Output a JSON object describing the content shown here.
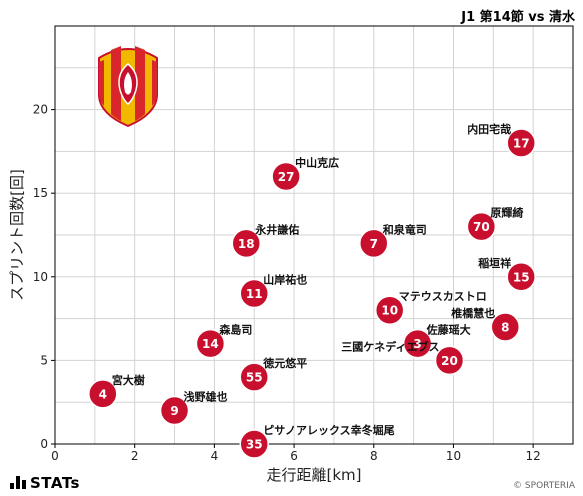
{
  "header": {
    "match_title": "J1 第14節 vs 清水"
  },
  "footer": {
    "brand": "STATs",
    "credit": "© SPORTERIA"
  },
  "colors": {
    "marker": "#c8102e",
    "marker_edge": "#ffffff",
    "grid": "#d3d3d3",
    "crest_red": "#d8262a",
    "crest_yellow": "#f2b800"
  },
  "icons": {
    "crest": "team-crest-icon",
    "stats": "stats-logo-icon"
  },
  "chart_data": {
    "type": "scatter",
    "title": "",
    "xlabel": "走行距離[km]",
    "ylabel": "スプリント回数[回]",
    "xlim": [
      0,
      13
    ],
    "ylim": [
      0,
      25
    ],
    "xticks": [
      0,
      2,
      4,
      6,
      8,
      10,
      12
    ],
    "yticks": [
      0,
      5,
      10,
      15,
      20
    ],
    "grid": true,
    "points": [
      {
        "number": "17",
        "name": "内田宅哉",
        "x": 11.7,
        "y": 18,
        "label_side": "left"
      },
      {
        "number": "27",
        "name": "中山克広",
        "x": 5.8,
        "y": 16,
        "label_side": "right"
      },
      {
        "number": "70",
        "name": "原輝綺",
        "x": 10.7,
        "y": 13,
        "label_side": "right"
      },
      {
        "number": "18",
        "name": "永井謙佑",
        "x": 4.8,
        "y": 12,
        "label_side": "right"
      },
      {
        "number": "7",
        "name": "和泉竜司",
        "x": 8.0,
        "y": 12,
        "label_side": "right"
      },
      {
        "number": "15",
        "name": "稲垣祥",
        "x": 11.7,
        "y": 10,
        "label_side": "left"
      },
      {
        "number": "11",
        "name": "山岸祐也",
        "x": 5.0,
        "y": 9,
        "label_side": "right"
      },
      {
        "number": "10",
        "name": "マテウスカストロ",
        "x": 8.4,
        "y": 8,
        "label_side": "right"
      },
      {
        "number": "8",
        "name": "椎橋慧也",
        "x": 11.3,
        "y": 7,
        "label_side": "left"
      },
      {
        "number": "14",
        "name": "森島司",
        "x": 3.9,
        "y": 6,
        "label_side": "right"
      },
      {
        "number": "3",
        "name": "佐藤瑶大",
        "x": 9.1,
        "y": 6,
        "label_side": "right"
      },
      {
        "number": "20",
        "name": "三國ケネディエブス",
        "x": 9.9,
        "y": 5,
        "label_side": "left"
      },
      {
        "number": "55",
        "name": "徳元悠平",
        "x": 5.0,
        "y": 4,
        "label_side": "right"
      },
      {
        "number": "4",
        "name": "宮大樹",
        "x": 1.2,
        "y": 3,
        "label_side": "right"
      },
      {
        "number": "9",
        "name": "浅野雄也",
        "x": 3.0,
        "y": 2,
        "label_side": "right"
      },
      {
        "number": "35",
        "name": "ピサノアレックス幸冬堀尾",
        "x": 5.0,
        "y": 0,
        "label_side": "right"
      }
    ]
  }
}
